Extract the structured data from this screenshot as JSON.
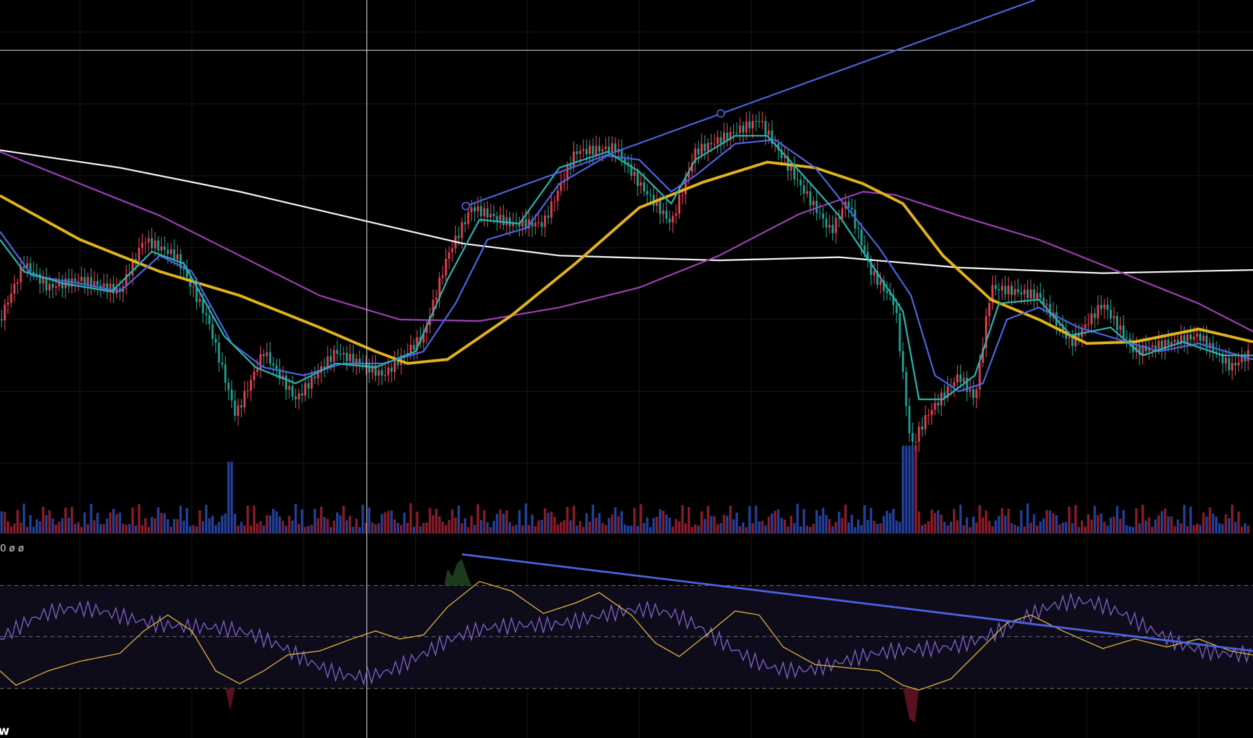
{
  "indicator_label": "0 ø ø",
  "corner_label": "w"
}
